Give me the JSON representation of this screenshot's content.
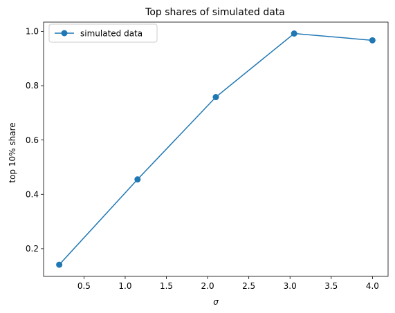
{
  "chart_data": {
    "type": "line",
    "title": "Top shares of simulated data",
    "xlabel": "σ",
    "ylabel": "top 10% share",
    "xlim": [
      0.01,
      4.19
    ],
    "ylim": [
      0.098,
      1.034
    ],
    "xticks": [
      0.5,
      1.0,
      1.5,
      2.0,
      2.5,
      3.0,
      3.5,
      4.0
    ],
    "xtick_labels": [
      "0.5",
      "1.0",
      "1.5",
      "2.0",
      "2.5",
      "3.0",
      "3.5",
      "4.0"
    ],
    "yticks": [
      0.2,
      0.4,
      0.6,
      0.8,
      1.0
    ],
    "ytick_labels": [
      "0.2",
      "0.4",
      "0.6",
      "0.8",
      "1.0"
    ],
    "grid": false,
    "legend_position": "top-left",
    "series": [
      {
        "name": "simulated data",
        "color": "#1f77b4",
        "marker": "circle",
        "x": [
          0.2,
          1.15,
          2.1,
          3.05,
          4.0
        ],
        "y": [
          0.141,
          0.455,
          0.758,
          0.992,
          0.967
        ]
      }
    ]
  }
}
